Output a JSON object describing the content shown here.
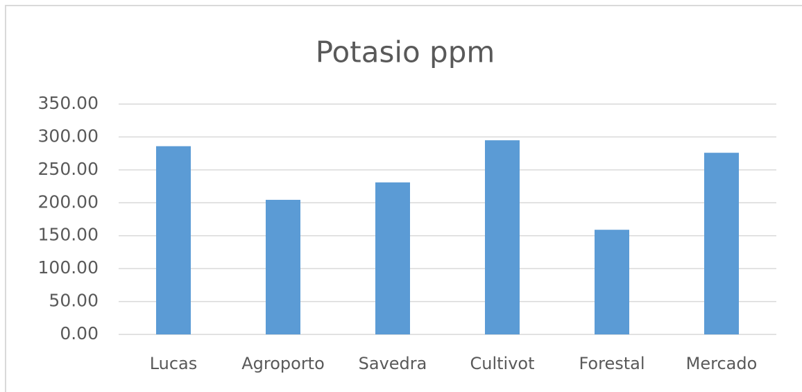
{
  "chart_data": {
    "type": "bar",
    "title": "Potasio ppm",
    "categories": [
      "Lucas",
      "Agroporto",
      "Savedra",
      "Cultivot",
      "Forestal",
      "Mercado"
    ],
    "values": [
      286,
      204.5,
      231,
      295,
      159,
      276
    ],
    "color": "#5b9bd5",
    "ylim": [
      0,
      350
    ],
    "yticks": [
      {
        "value": 0,
        "label": "0.00"
      },
      {
        "value": 50,
        "label": "50.00"
      },
      {
        "value": 100,
        "label": "100.00"
      },
      {
        "value": 150,
        "label": "150.00"
      },
      {
        "value": 200,
        "label": "200.00"
      },
      {
        "value": 250,
        "label": "250.00"
      },
      {
        "value": 300,
        "label": "300.00"
      },
      {
        "value": 350,
        "label": "350.00"
      }
    ],
    "grid": true
  }
}
